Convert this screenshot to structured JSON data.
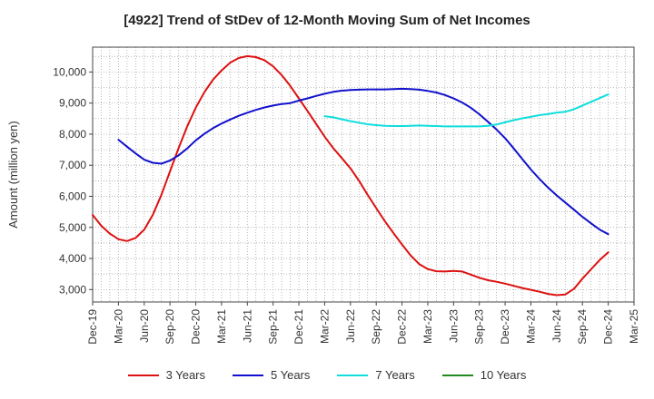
{
  "chart_data": {
    "type": "line",
    "title": "[4922]  Trend of StDev of 12-Month Moving Sum of Net Incomes",
    "xlabel": "",
    "ylabel": "Amount (million yen)",
    "x_ticks": [
      "Dec-19",
      "Mar-20",
      "Jun-20",
      "Sep-20",
      "Dec-20",
      "Mar-21",
      "Jun-21",
      "Sep-21",
      "Dec-21",
      "Mar-22",
      "Jun-22",
      "Sep-22",
      "Dec-22",
      "Mar-23",
      "Jun-23",
      "Sep-23",
      "Dec-23",
      "Mar-24",
      "Jun-24",
      "Sep-24",
      "Dec-24",
      "Mar-25"
    ],
    "y_ticks": [
      3000,
      4000,
      5000,
      6000,
      7000,
      8000,
      9000,
      10000
    ],
    "y_tick_labels": [
      "3,000",
      "4,000",
      "5,000",
      "6,000",
      "7,000",
      "8,000",
      "9,000",
      "10,000"
    ],
    "xlim": [
      "2019-12",
      "2025-03"
    ],
    "ylim": [
      2600,
      10800
    ],
    "grid": true,
    "legend_position": "bottom",
    "series": [
      {
        "name": "3 Years",
        "color": "#dd1111",
        "x": [
          "2019-12",
          "2020-01",
          "2020-02",
          "2020-03",
          "2020-04",
          "2020-05",
          "2020-06",
          "2020-07",
          "2020-08",
          "2020-09",
          "2020-10",
          "2020-11",
          "2020-12",
          "2021-01",
          "2021-02",
          "2021-03",
          "2021-04",
          "2021-05",
          "2021-06",
          "2021-07",
          "2021-08",
          "2021-09",
          "2021-10",
          "2021-11",
          "2021-12",
          "2022-01",
          "2022-02",
          "2022-03",
          "2022-04",
          "2022-05",
          "2022-06",
          "2022-07",
          "2022-08",
          "2022-09",
          "2022-10",
          "2022-11",
          "2022-12",
          "2023-01",
          "2023-02",
          "2023-03",
          "2023-04",
          "2023-05",
          "2023-06",
          "2023-07",
          "2023-08",
          "2023-09",
          "2023-10",
          "2023-11",
          "2023-12",
          "2024-01",
          "2024-02",
          "2024-03",
          "2024-04",
          "2024-05",
          "2024-06",
          "2024-07",
          "2024-08",
          "2024-09",
          "2024-10",
          "2024-11",
          "2024-12"
        ],
        "values": [
          5400,
          5050,
          4800,
          4620,
          4560,
          4660,
          4930,
          5400,
          6050,
          6800,
          7550,
          8250,
          8850,
          9350,
          9750,
          10050,
          10300,
          10450,
          10510,
          10480,
          10380,
          10180,
          9900,
          9550,
          9150,
          8750,
          8330,
          7920,
          7550,
          7230,
          6900,
          6500,
          6050,
          5620,
          5200,
          4820,
          4450,
          4100,
          3820,
          3660,
          3590,
          3580,
          3600,
          3580,
          3480,
          3380,
          3300,
          3250,
          3190,
          3120,
          3050,
          2990,
          2930,
          2860,
          2820,
          2840,
          3020,
          3350,
          3650,
          3950,
          4200
        ]
      },
      {
        "name": "5 Years",
        "color": "#1111cc",
        "x": [
          "2020-03",
          "2020-04",
          "2020-05",
          "2020-06",
          "2020-07",
          "2020-08",
          "2020-09",
          "2020-10",
          "2020-11",
          "2020-12",
          "2021-01",
          "2021-02",
          "2021-03",
          "2021-04",
          "2021-05",
          "2021-06",
          "2021-07",
          "2021-08",
          "2021-09",
          "2021-10",
          "2021-11",
          "2021-12",
          "2022-01",
          "2022-02",
          "2022-03",
          "2022-04",
          "2022-05",
          "2022-06",
          "2022-07",
          "2022-08",
          "2022-09",
          "2022-10",
          "2022-11",
          "2022-12",
          "2023-01",
          "2023-02",
          "2023-03",
          "2023-04",
          "2023-05",
          "2023-06",
          "2023-07",
          "2023-08",
          "2023-09",
          "2023-10",
          "2023-11",
          "2023-12",
          "2024-01",
          "2024-02",
          "2024-03",
          "2024-04",
          "2024-05",
          "2024-06",
          "2024-07",
          "2024-08",
          "2024-09",
          "2024-10",
          "2024-11",
          "2024-12"
        ],
        "values": [
          7820,
          7600,
          7380,
          7180,
          7080,
          7050,
          7150,
          7320,
          7540,
          7800,
          8010,
          8190,
          8340,
          8470,
          8590,
          8690,
          8780,
          8860,
          8920,
          8970,
          9000,
          9080,
          9150,
          9230,
          9300,
          9360,
          9400,
          9420,
          9430,
          9440,
          9440,
          9440,
          9450,
          9460,
          9450,
          9430,
          9390,
          9340,
          9260,
          9150,
          9020,
          8850,
          8640,
          8400,
          8150,
          7870,
          7540,
          7200,
          6860,
          6560,
          6280,
          6030,
          5800,
          5570,
          5340,
          5130,
          4930,
          4780
        ]
      },
      {
        "name": "7 Years",
        "color": "#11dddd",
        "x": [
          "2022-03",
          "2022-04",
          "2022-05",
          "2022-06",
          "2022-07",
          "2022-08",
          "2022-09",
          "2022-10",
          "2022-11",
          "2022-12",
          "2023-01",
          "2023-02",
          "2023-03",
          "2023-04",
          "2023-05",
          "2023-06",
          "2023-07",
          "2023-08",
          "2023-09",
          "2023-10",
          "2023-11",
          "2023-12",
          "2024-01",
          "2024-02",
          "2024-03",
          "2024-04",
          "2024-05",
          "2024-06",
          "2024-07",
          "2024-08",
          "2024-09",
          "2024-10",
          "2024-11",
          "2024-12"
        ],
        "values": [
          8580,
          8540,
          8480,
          8420,
          8370,
          8320,
          8290,
          8270,
          8260,
          8260,
          8270,
          8280,
          8270,
          8260,
          8250,
          8250,
          8250,
          8250,
          8250,
          8270,
          8310,
          8380,
          8450,
          8510,
          8560,
          8610,
          8650,
          8690,
          8720,
          8800,
          8920,
          9040,
          9160,
          9280
        ]
      },
      {
        "name": "10 Years",
        "color": "#228822",
        "x": [],
        "values": []
      }
    ]
  }
}
